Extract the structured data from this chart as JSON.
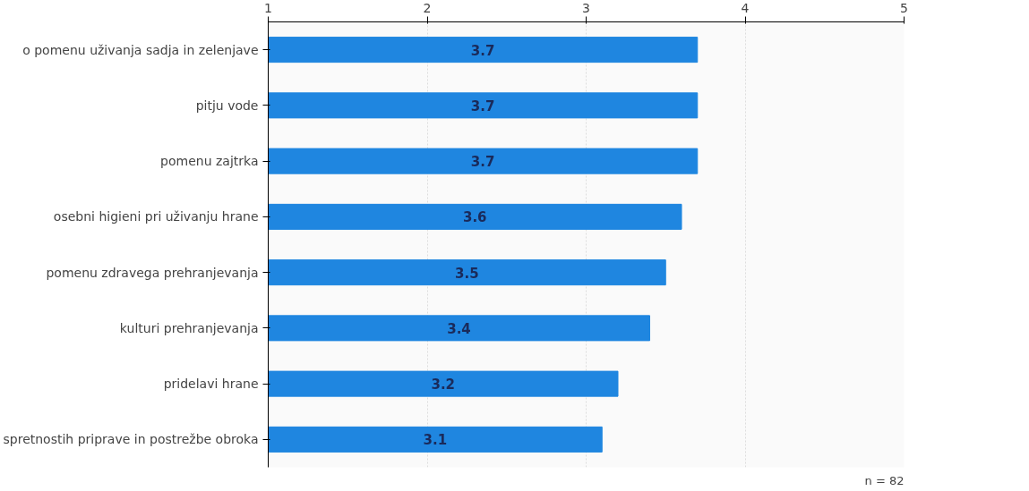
{
  "chart_data": {
    "type": "bar",
    "orientation": "horizontal",
    "categories": [
      "o pomenu uživanja sadja in zelenjave",
      "pitju vode",
      "pomenu zajtrka",
      "osebni higieni pri uživanju hrane",
      "pomenu zdravega prehranjevanja",
      "kulturi prehranjevanja",
      "pridelavi hrane",
      "spretnostih priprave in postrežbe obroka"
    ],
    "values": [
      3.7,
      3.7,
      3.7,
      3.6,
      3.5,
      3.4,
      3.2,
      3.1
    ],
    "color": "#1f86e0",
    "xlim": [
      1,
      5
    ],
    "xticks": [
      1,
      2,
      3,
      4,
      5
    ],
    "grid": "x",
    "data_labels": true,
    "annotations": [
      "n = 82"
    ]
  }
}
